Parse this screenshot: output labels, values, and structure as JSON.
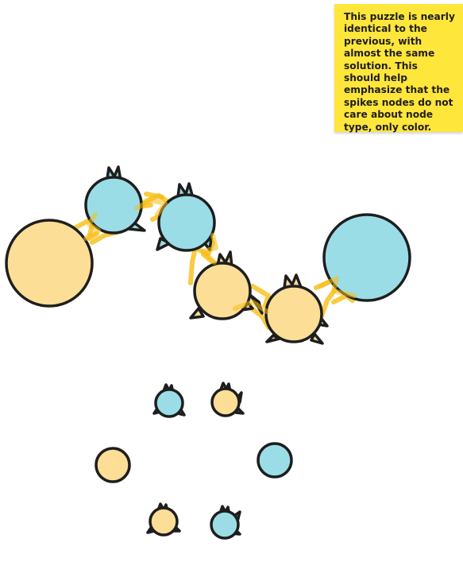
{
  "note": {
    "text": "This puzzle is nearly identical to the previous, with almost the same solution. This should help emphasize that the spikes nodes do not care about node type, only color."
  },
  "colors": {
    "blue": "#9bdde6",
    "yellow": "#fcde97",
    "outline": "#1e1e1e",
    "highlighter": "#f6be14",
    "note": "#ffe63b"
  },
  "puzzle": {
    "solved_chain": [
      {
        "id": "big-yellow-left",
        "color": "yellow",
        "type": "plain"
      },
      {
        "id": "blue-spike-1",
        "color": "blue",
        "type": "spikes"
      },
      {
        "id": "blue-spike-2",
        "color": "blue",
        "type": "spikes"
      },
      {
        "id": "yellow-spike-1",
        "color": "yellow",
        "type": "spikes"
      },
      {
        "id": "yellow-spike-2",
        "color": "yellow",
        "type": "spikes"
      },
      {
        "id": "big-blue-right",
        "color": "blue",
        "type": "plain"
      }
    ],
    "legend_nodes": [
      {
        "id": "small-blue-spike-top",
        "color": "blue",
        "type": "spikes"
      },
      {
        "id": "small-yellow-spike-top",
        "color": "yellow",
        "type": "spikes"
      },
      {
        "id": "small-yellow-plain",
        "color": "yellow",
        "type": "plain"
      },
      {
        "id": "small-blue-plain",
        "color": "blue",
        "type": "plain"
      },
      {
        "id": "small-yellow-spike-bottom",
        "color": "yellow",
        "type": "spikes"
      },
      {
        "id": "small-blue-spike-bottom",
        "color": "blue",
        "type": "spikes"
      }
    ]
  }
}
